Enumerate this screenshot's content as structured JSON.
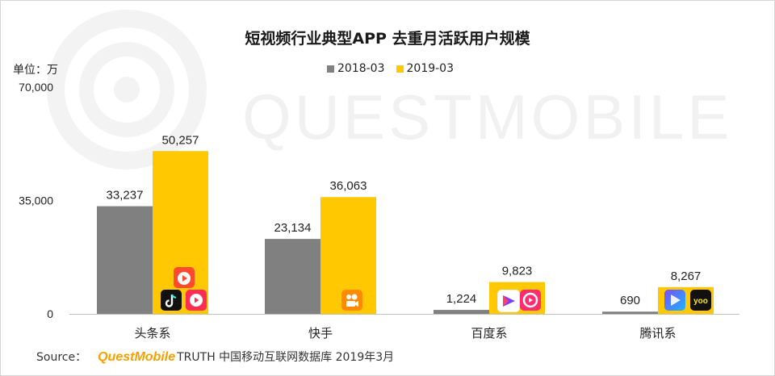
{
  "chart_data": {
    "type": "bar",
    "title": "短视频行业典型APP 去重月活跃用户规模",
    "unit_label": "单位：万",
    "categories": [
      "头条系",
      "快手",
      "百度系",
      "腾讯系"
    ],
    "series": [
      {
        "name": "2018-03",
        "color": "#808080",
        "values": [
          33237,
          23134,
          1224,
          690
        ]
      },
      {
        "name": "2019-03",
        "color": "#ffc800",
        "values": [
          50257,
          36063,
          9823,
          8267
        ]
      }
    ],
    "value_labels": [
      [
        "33,237",
        "23,134",
        "1,224",
        "690"
      ],
      [
        "50,257",
        "36,063",
        "9,823",
        "8,267"
      ]
    ],
    "y_ticks": [
      "0",
      "35,000",
      "70,000"
    ],
    "y_tick_values": [
      0,
      35000,
      70000
    ],
    "ylim": [
      0,
      70000
    ],
    "grid": false,
    "legend_position": "top-center"
  },
  "watermark": "QUESTMOBILE",
  "icons": {
    "头条系": [
      "douyin-icon",
      "xigua-video-icon",
      "huoshan-video-icon"
    ],
    "快手": [
      "kuaishou-icon"
    ],
    "百度系": [
      "haokan-video-icon",
      "quanmin-video-icon"
    ],
    "腾讯系": [
      "weishi-icon",
      "yoo-video-icon"
    ]
  },
  "yoo_text": "yoo",
  "source": {
    "label": "Source：",
    "brand": "QuestMobile",
    "rest": "TRUTH 中国移动互联网数据库 2019年3月"
  }
}
